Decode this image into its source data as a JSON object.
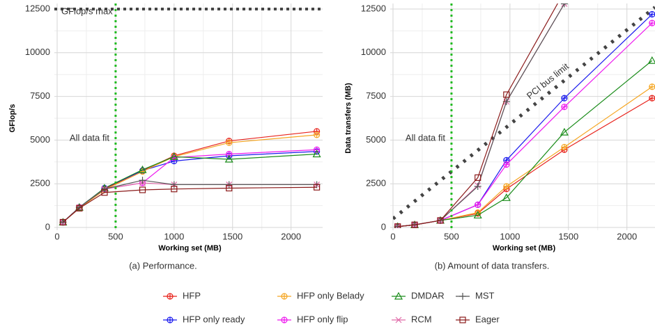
{
  "chart_data": [
    {
      "type": "line",
      "caption": "(a) Performance.",
      "x_label": "Working set (MB)",
      "y_label": "GFlop/s",
      "xlim": [
        0,
        2270
      ],
      "ylim": [
        0,
        12500
      ],
      "xticks": [
        0,
        500,
        1000,
        1500,
        2000
      ],
      "yticks": [
        0,
        2500,
        5000,
        7500,
        10000,
        12500
      ],
      "grid": true,
      "hline": {
        "value": 12500,
        "label": "GFlop/s max",
        "color": "#444444"
      },
      "vline": {
        "value": 500,
        "label": "All data fit",
        "color": "#22bb22"
      },
      "x": [
        50,
        190,
        405,
        730,
        1000,
        1470,
        2220
      ],
      "series": [
        {
          "name": "HFP",
          "color": "#e8221b",
          "marker": "circle",
          "values": [
            300,
            1150,
            2200,
            3250,
            4100,
            4950,
            5500
          ]
        },
        {
          "name": "HFP only ready",
          "color": "#1a1aee",
          "marker": "circle",
          "values": [
            300,
            1150,
            2250,
            3250,
            3800,
            4100,
            4350
          ]
        },
        {
          "name": "HFP only Belady",
          "color": "#f5a623",
          "marker": "circle",
          "values": [
            300,
            1100,
            2150,
            3200,
            4050,
            4850,
            5300
          ]
        },
        {
          "name": "HFP only flip",
          "color": "#ee1aee",
          "marker": "circle",
          "values": [
            300,
            1150,
            2200,
            2550,
            4000,
            4200,
            4450
          ]
        },
        {
          "name": "DMDAR",
          "color": "#1a8c1a",
          "marker": "triangle",
          "values": [
            300,
            1150,
            2250,
            3300,
            4050,
            3900,
            4200
          ]
        },
        {
          "name": "RCM",
          "color": "#e06aa8",
          "marker": "x",
          "values": [
            300,
            1150,
            2200,
            2550,
            2450,
            2450,
            2450
          ]
        },
        {
          "name": "MST",
          "color": "#555555",
          "marker": "plus",
          "values": [
            300,
            1150,
            2200,
            2700,
            2450,
            2450,
            2450
          ]
        },
        {
          "name": "Eager",
          "color": "#8b1a1a",
          "marker": "square",
          "values": [
            300,
            1100,
            2000,
            2150,
            2200,
            2250,
            2300
          ]
        }
      ]
    },
    {
      "type": "line",
      "caption": "(b) Amount of data transfers.",
      "x_label": "Working set (MB)",
      "y_label": "Data transfers (MB)",
      "xlim": [
        0,
        2240
      ],
      "ylim": [
        0,
        12500
      ],
      "xticks": [
        0,
        500,
        1000,
        1500,
        2000
      ],
      "yticks": [
        0,
        2500,
        5000,
        7500,
        10000,
        12500
      ],
      "grid": true,
      "vline": {
        "value": 500,
        "label": "All data fit",
        "color": "#22bb22"
      },
      "ref_line": {
        "label": "PCI bus limit",
        "color": "#444444",
        "x": [
          0,
          2240
        ],
        "y": [
          500,
          12600
        ]
      },
      "x": [
        40,
        185,
        405,
        725,
        970,
        1465,
        2215
      ],
      "series": [
        {
          "color": "#e8221b",
          "marker": "circle",
          "values": [
            50,
            150,
            400,
            800,
            2200,
            4450,
            7400
          ]
        },
        {
          "color": "#1a1aee",
          "marker": "circle",
          "values": [
            50,
            150,
            400,
            1300,
            3850,
            7400,
            12200
          ]
        },
        {
          "color": "#f5a623",
          "marker": "circle",
          "values": [
            50,
            150,
            400,
            850,
            2350,
            4600,
            8050
          ]
        },
        {
          "color": "#ee1aee",
          "marker": "circle",
          "values": [
            50,
            150,
            400,
            1300,
            3600,
            6900,
            11700
          ]
        },
        {
          "color": "#1a8c1a",
          "marker": "triangle",
          "values": [
            50,
            150,
            400,
            700,
            1700,
            5450,
            9550
          ]
        },
        {
          "color": "#e06aa8",
          "marker": "x",
          "values": [
            50,
            150,
            400,
            2400,
            7200,
            12800,
            19000
          ]
        },
        {
          "color": "#555555",
          "marker": "plus",
          "values": [
            50,
            150,
            400,
            2350,
            7200,
            12800,
            19000
          ]
        },
        {
          "color": "#8b1a1a",
          "marker": "square",
          "values": [
            50,
            150,
            400,
            2850,
            7600,
            13500,
            20000
          ]
        }
      ]
    }
  ]
}
